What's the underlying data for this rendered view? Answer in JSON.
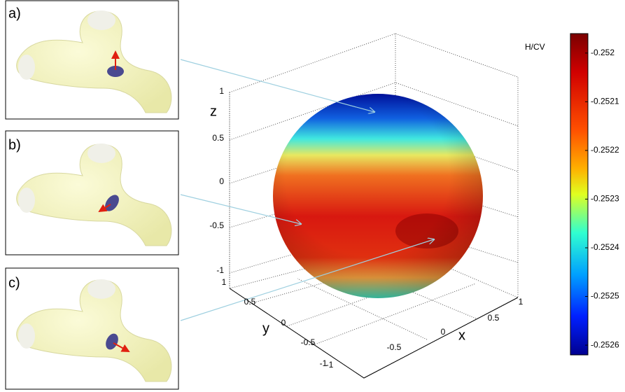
{
  "panels": [
    {
      "label": "a)"
    },
    {
      "label": "b)"
    },
    {
      "label": "c)"
    }
  ],
  "axes": {
    "z": {
      "label": "z",
      "ticks": [
        1,
        0.5,
        0,
        -0.5,
        -1
      ]
    },
    "y": {
      "label": "y",
      "ticks": [
        1,
        0.5,
        0,
        -0.5,
        -1
      ]
    },
    "x": {
      "label": "x",
      "ticks": [
        -1,
        -0.5,
        0,
        0.5,
        1
      ]
    }
  },
  "colorbar": {
    "label": "H/CV",
    "clim": [
      -0.25262,
      -0.25196
    ],
    "ticks": [
      -0.252,
      -0.2521,
      -0.2522,
      -0.2523,
      -0.2524,
      -0.2525,
      -0.2526
    ]
  }
}
